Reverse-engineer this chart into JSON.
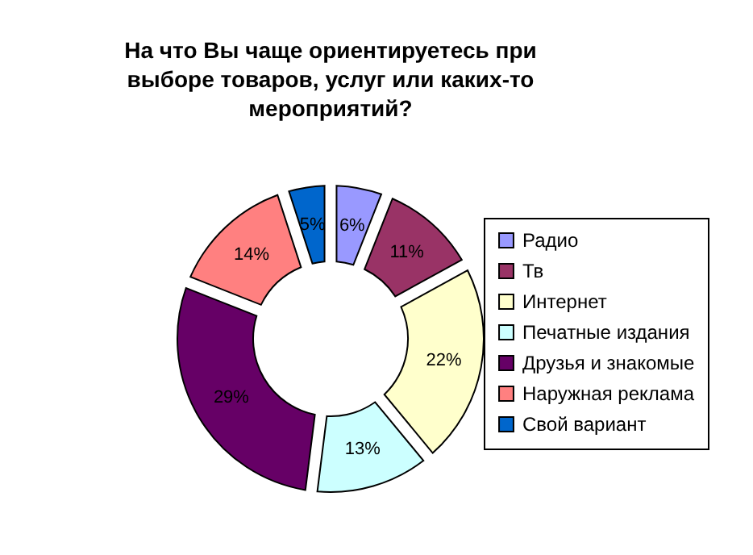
{
  "chart_data": {
    "type": "donut",
    "title": "На что Вы чаще ориентируетесь при выборе товаров, услуг или каких-то мероприятий?",
    "categories": [
      "Радио",
      "Тв",
      "Интернет",
      "Печатные издания",
      "Друзья и знакомые",
      "Наружная реклама",
      "Свой вариант"
    ],
    "values": [
      6,
      11,
      22,
      13,
      29,
      14,
      5
    ],
    "value_labels": [
      "6%",
      "11%",
      "22%",
      "13%",
      "29%",
      "14%",
      "5%"
    ],
    "colors": [
      "#9999ff",
      "#993366",
      "#ffffcc",
      "#ccffff",
      "#660066",
      "#ff8080",
      "#0066cc"
    ],
    "legend": "right"
  }
}
